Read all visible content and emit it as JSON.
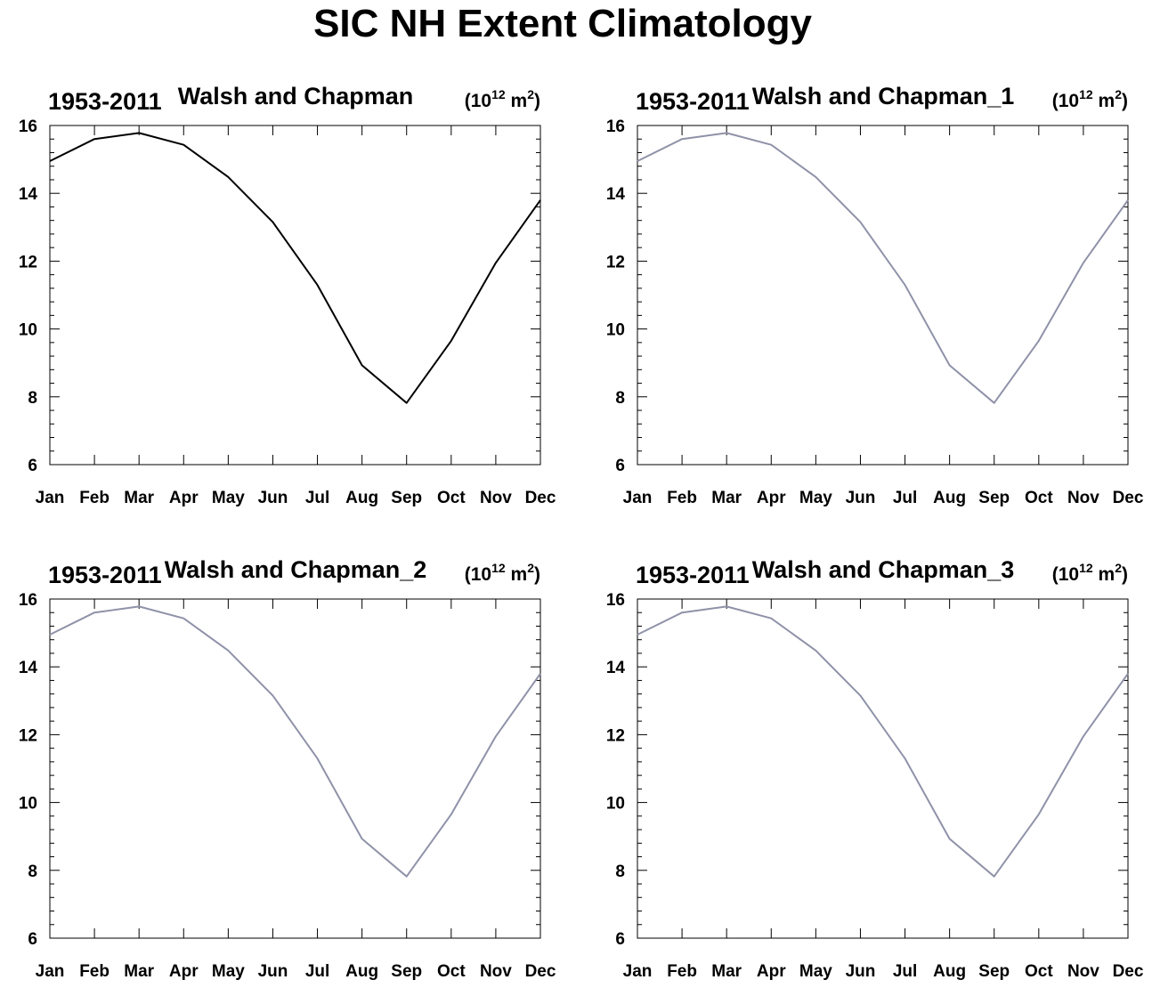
{
  "figure_title": "SIC NH Extent Climatology",
  "chart_data": [
    {
      "type": "line",
      "title": "Walsh and Chapman",
      "left_label": "1953-2011",
      "units": {
        "base": "10",
        "exp": "12",
        "unit": "m",
        "unit_exp": "2"
      },
      "categories": [
        "Jan",
        "Feb",
        "Mar",
        "Apr",
        "May",
        "Jun",
        "Jul",
        "Aug",
        "Sep",
        "Oct",
        "Nov",
        "Dec"
      ],
      "series": [
        {
          "values": [
            14.95,
            15.6,
            15.78,
            15.43,
            14.48,
            13.15,
            11.3,
            8.93,
            7.82,
            9.65,
            11.95,
            13.8
          ],
          "color": "#000000"
        }
      ],
      "ylim": [
        6,
        16
      ],
      "yticks": [
        6,
        8,
        10,
        12,
        14,
        16
      ],
      "xlabel": "",
      "ylabel": "",
      "grid": false
    },
    {
      "type": "line",
      "title": "Walsh and Chapman_1",
      "left_label": "1953-2011",
      "units": {
        "base": "10",
        "exp": "12",
        "unit": "m",
        "unit_exp": "2"
      },
      "categories": [
        "Jan",
        "Feb",
        "Mar",
        "Apr",
        "May",
        "Jun",
        "Jul",
        "Aug",
        "Sep",
        "Oct",
        "Nov",
        "Dec"
      ],
      "series": [
        {
          "values": [
            14.95,
            15.6,
            15.78,
            15.43,
            14.48,
            13.15,
            11.3,
            8.93,
            7.82,
            9.65,
            11.95,
            13.8
          ],
          "color": "#8f92a8"
        }
      ],
      "ylim": [
        6,
        16
      ],
      "yticks": [
        6,
        8,
        10,
        12,
        14,
        16
      ],
      "xlabel": "",
      "ylabel": "",
      "grid": false
    },
    {
      "type": "line",
      "title": "Walsh and Chapman_2",
      "left_label": "1953-2011",
      "units": {
        "base": "10",
        "exp": "12",
        "unit": "m",
        "unit_exp": "2"
      },
      "categories": [
        "Jan",
        "Feb",
        "Mar",
        "Apr",
        "May",
        "Jun",
        "Jul",
        "Aug",
        "Sep",
        "Oct",
        "Nov",
        "Dec"
      ],
      "series": [
        {
          "values": [
            14.95,
            15.6,
            15.78,
            15.43,
            14.48,
            13.15,
            11.3,
            8.93,
            7.82,
            9.65,
            11.95,
            13.8
          ],
          "color": "#8f92a8"
        }
      ],
      "ylim": [
        6,
        16
      ],
      "yticks": [
        6,
        8,
        10,
        12,
        14,
        16
      ],
      "xlabel": "",
      "ylabel": "",
      "grid": false
    },
    {
      "type": "line",
      "title": "Walsh and Chapman_3",
      "left_label": "1953-2011",
      "units": {
        "base": "10",
        "exp": "12",
        "unit": "m",
        "unit_exp": "2"
      },
      "categories": [
        "Jan",
        "Feb",
        "Mar",
        "Apr",
        "May",
        "Jun",
        "Jul",
        "Aug",
        "Sep",
        "Oct",
        "Nov",
        "Dec"
      ],
      "series": [
        {
          "values": [
            14.95,
            15.6,
            15.78,
            15.43,
            14.48,
            13.15,
            11.3,
            8.93,
            7.82,
            9.65,
            11.95,
            13.8
          ],
          "color": "#8f92a8"
        }
      ],
      "ylim": [
        6,
        16
      ],
      "yticks": [
        6,
        8,
        10,
        12,
        14,
        16
      ],
      "xlabel": "",
      "ylabel": "",
      "grid": false
    }
  ]
}
